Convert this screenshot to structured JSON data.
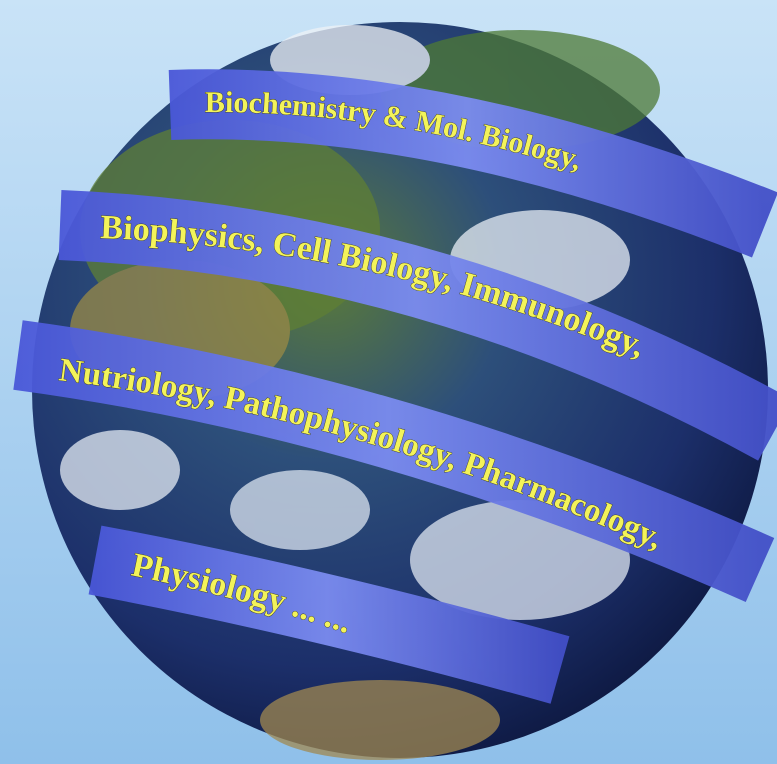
{
  "ribbons": [
    "Biochemistry & Mol. Biology,",
    "Biophysics, Cell Biology, Immunology,",
    "Nutriology, Pathophysiology, Pharmacology,",
    "Physiology ... ..."
  ]
}
